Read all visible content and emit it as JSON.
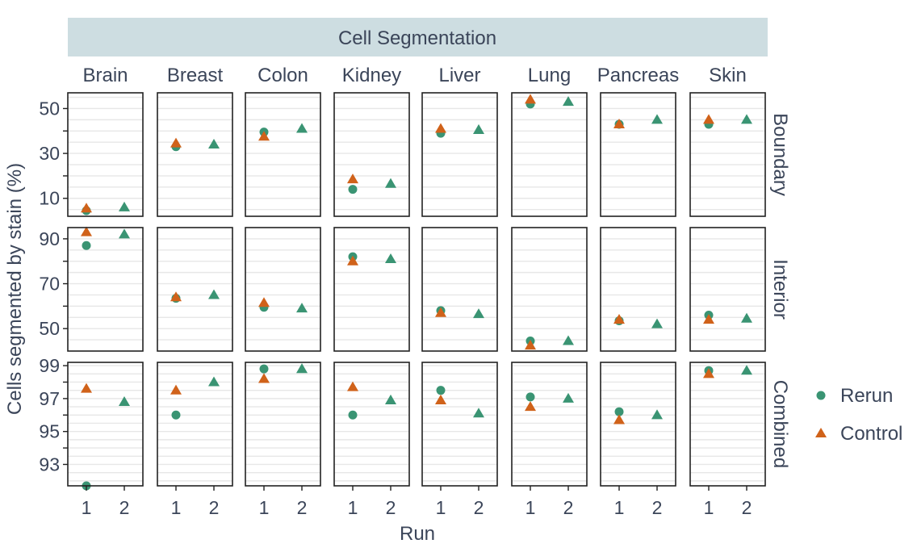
{
  "chart_data": {
    "type": "scatter",
    "title": "Cell Segmentation",
    "xlabel": "Run",
    "ylabel": "Cells segmented by stain (%)",
    "columns": [
      "Brain",
      "Breast",
      "Colon",
      "Kidney",
      "Liver",
      "Lung",
      "Pancreas",
      "Skin"
    ],
    "x_ticks": [
      "1",
      "2"
    ],
    "legend": {
      "placement": "right",
      "entries": [
        {
          "label": "Rerun",
          "color": "#3a9473",
          "shape": "circle"
        },
        {
          "label": "Control",
          "color": "#d0621a",
          "shape": "triangle"
        }
      ]
    },
    "rows": [
      {
        "label": "Boundary",
        "ylim": [
          2,
          57
        ],
        "yticks": [
          10,
          30,
          50
        ],
        "points": {
          "Brain": {
            "rerun_1": 4.5,
            "control_1": 5.5,
            "rerun_2": 6.0
          },
          "Breast": {
            "rerun_1": 33.0,
            "control_1": 34.5,
            "rerun_2": 34.0
          },
          "Colon": {
            "rerun_1": 39.5,
            "control_1": 37.5,
            "rerun_2": 41.0
          },
          "Kidney": {
            "rerun_1": 14.0,
            "control_1": 18.5,
            "rerun_2": 16.5
          },
          "Liver": {
            "rerun_1": 39.0,
            "control_1": 41.0,
            "rerun_2": 40.5
          },
          "Lung": {
            "rerun_1": 52.0,
            "control_1": 54.0,
            "rerun_2": 53.0
          },
          "Pancreas": {
            "rerun_1": 43.0,
            "control_1": 43.0,
            "rerun_2": 45.0
          },
          "Skin": {
            "rerun_1": 43.0,
            "control_1": 45.0,
            "rerun_2": 45.0
          }
        }
      },
      {
        "label": "Interior",
        "ylim": [
          40,
          95
        ],
        "yticks": [
          50,
          70,
          90
        ],
        "points": {
          "Brain": {
            "rerun_1": 87.0,
            "control_1": 93.0,
            "rerun_2": 92.0
          },
          "Breast": {
            "rerun_1": 63.5,
            "control_1": 64.0,
            "rerun_2": 65.0
          },
          "Colon": {
            "rerun_1": 59.5,
            "control_1": 61.5,
            "rerun_2": 59.0
          },
          "Kidney": {
            "rerun_1": 82.0,
            "control_1": 80.0,
            "rerun_2": 81.0
          },
          "Liver": {
            "rerun_1": 58.0,
            "control_1": 57.0,
            "rerun_2": 56.5
          },
          "Lung": {
            "rerun_1": 44.5,
            "control_1": 42.5,
            "rerun_2": 44.5
          },
          "Pancreas": {
            "rerun_1": 53.5,
            "control_1": 54.0,
            "rerun_2": 52.0
          },
          "Skin": {
            "rerun_1": 56.0,
            "control_1": 54.0,
            "rerun_2": 54.5
          }
        }
      },
      {
        "label": "Combined",
        "ylim": [
          91.7,
          99.2
        ],
        "yticks": [
          93,
          95,
          97,
          99
        ],
        "points": {
          "Brain": {
            "rerun_1": 91.7,
            "control_1": 97.6,
            "rerun_2": 96.8
          },
          "Breast": {
            "rerun_1": 96.0,
            "control_1": 97.5,
            "rerun_2": 98.0
          },
          "Colon": {
            "rerun_1": 98.8,
            "control_1": 98.2,
            "rerun_2": 98.8
          },
          "Kidney": {
            "rerun_1": 96.0,
            "control_1": 97.7,
            "rerun_2": 96.9
          },
          "Liver": {
            "rerun_1": 97.5,
            "control_1": 96.9,
            "rerun_2": 96.1
          },
          "Lung": {
            "rerun_1": 97.1,
            "control_1": 96.5,
            "rerun_2": 97.0
          },
          "Pancreas": {
            "rerun_1": 96.2,
            "control_1": 95.7,
            "rerun_2": 96.0
          },
          "Skin": {
            "rerun_1": 98.7,
            "control_1": 98.5,
            "rerun_2": 98.7
          }
        }
      }
    ]
  }
}
